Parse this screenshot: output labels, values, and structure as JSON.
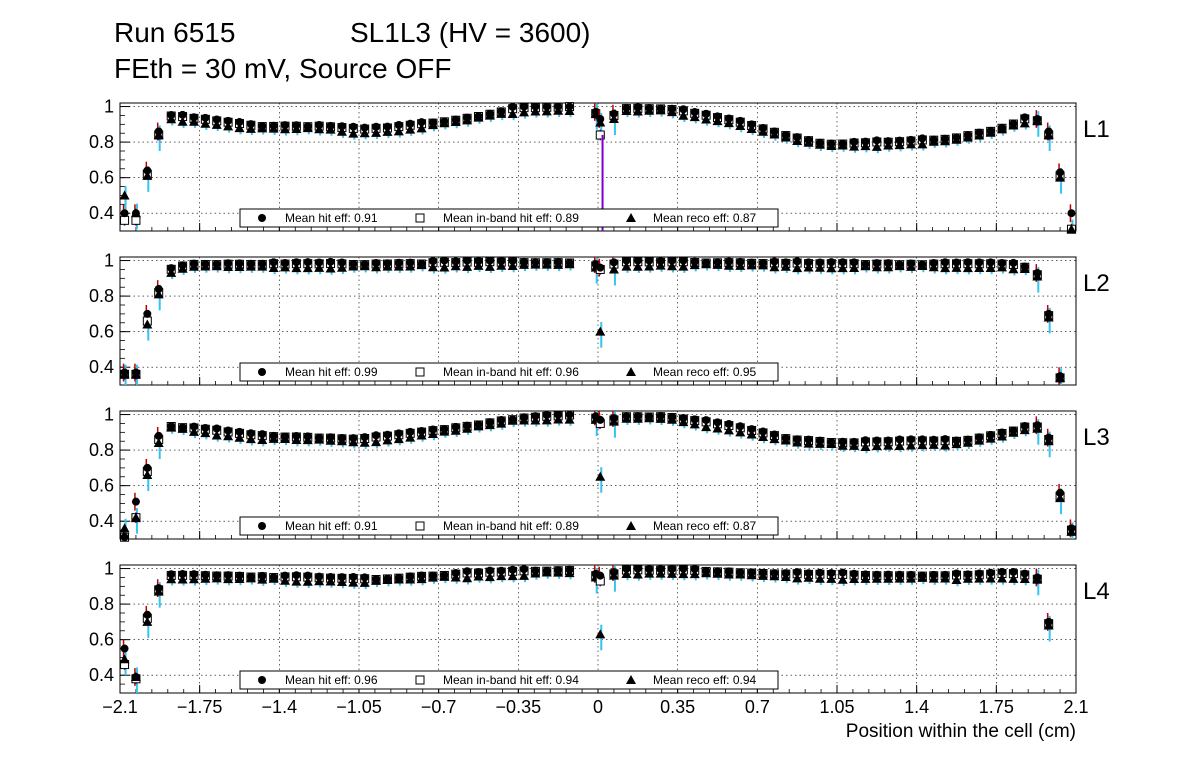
{
  "header": {
    "run": "Run 6515",
    "superlayer": "SL1L3 (HV = 3600)",
    "settings": "FEth = 30 mV, Source OFF"
  },
  "colors": {
    "frame": "#000000",
    "grid": "#000000",
    "hit_error": "#c00000",
    "inband_error": "#7b00c8",
    "reco_error": "#33c4f0",
    "marker": "#000000"
  },
  "chart_data": {
    "type": "scatter",
    "xlabel": "Position within the cell (cm)",
    "xlim": [
      -2.1,
      2.1
    ],
    "ylim": [
      0.3,
      1.02
    ],
    "x_ticks": [
      -2.1,
      -1.75,
      -1.4,
      -1.05,
      -0.7,
      -0.35,
      0,
      0.35,
      0.7,
      1.05,
      1.4,
      1.75,
      2.1
    ],
    "x_tick_labels": [
      "−2.1",
      "−1.75",
      "−1.4",
      "−1.05",
      "−0.7",
      "−0.35",
      "0",
      "0.35",
      "0.7",
      "1.05",
      "1.4",
      "1.75",
      "2.1"
    ],
    "y_ticks": [
      0.4,
      0.6,
      0.8,
      1
    ],
    "y_tick_labels": [
      "0.4",
      "0.6",
      "0.8",
      "1"
    ],
    "series_names": [
      "Mean hit  eff",
      "Mean in-band hit eff",
      "Mean reco eff"
    ],
    "panels": [
      {
        "label": "L1",
        "legend": {
          "hit": "Mean hit  eff: 0.91",
          "inband": "Mean in-band hit eff: 0.89",
          "reco": "Mean reco eff: 0.87"
        },
        "edge_points": {
          "x": [
            -2.08,
            -2.03,
            -1.98,
            -1.93,
            1.93,
            1.98,
            2.03,
            2.08
          ],
          "hit": [
            0.4,
            0.4,
            0.64,
            0.86,
            0.93,
            0.86,
            0.63,
            0.4
          ],
          "inband": [
            0.36,
            0.36,
            0.62,
            0.84,
            0.92,
            0.84,
            0.61,
            0.31
          ],
          "reco": [
            0.5,
            0.4,
            0.61,
            0.84,
            0.92,
            0.84,
            0.6,
            0.31
          ]
        },
        "center_points": {
          "x": [
            -0.01,
            0.01,
            0.07
          ],
          "hit": [
            0.97,
            0.93,
            0.96
          ],
          "inband": [
            0.96,
            0.84,
            0.95
          ],
          "reco": [
            0.96,
            0.91,
            0.93
          ]
        },
        "anchors": {
          "x": [
            -1.9,
            -1.75,
            -1.5,
            -1.2,
            -1.05,
            -0.9,
            -0.6,
            -0.35,
            -0.05,
            0.05,
            0.3,
            0.6,
            0.85,
            1.0,
            1.3,
            1.55,
            1.75,
            1.9
          ],
          "y": [
            0.95,
            0.93,
            0.89,
            0.89,
            0.87,
            0.88,
            0.93,
            0.99,
            1.0,
            0.99,
            0.99,
            0.92,
            0.83,
            0.79,
            0.8,
            0.82,
            0.87,
            0.94
          ]
        }
      },
      {
        "label": "L2",
        "legend": {
          "hit": "Mean hit  eff: 0.99",
          "inband": "Mean in-band hit eff: 0.96",
          "reco": "Mean reco eff: 0.95"
        },
        "edge_points": {
          "x": [
            -2.08,
            -2.03,
            -1.98,
            -1.93,
            1.93,
            1.98,
            2.03,
            2.08
          ],
          "hit": [
            0.37,
            0.37,
            0.7,
            0.84,
            0.93,
            0.7,
            0.35,
            null
          ],
          "inband": [
            0.36,
            0.36,
            0.66,
            0.82,
            0.92,
            0.69,
            0.34,
            null
          ],
          "reco": [
            0.36,
            0.36,
            0.64,
            0.81,
            0.91,
            0.68,
            0.34,
            null
          ]
        },
        "center_points": {
          "x": [
            -0.01,
            0.01,
            0.07
          ],
          "hit": [
            0.98,
            0.96,
            0.99
          ],
          "inband": [
            0.97,
            0.95,
            0.98
          ],
          "reco": [
            0.96,
            0.6,
            0.95
          ]
        },
        "anchors": {
          "x": [
            -1.9,
            -1.8,
            -1.5,
            -1.0,
            -0.5,
            -0.05,
            0.05,
            0.5,
            1.0,
            1.5,
            1.8,
            1.9
          ],
          "y": [
            0.94,
            0.98,
            0.98,
            0.98,
            0.99,
            0.99,
            0.99,
            0.99,
            0.98,
            0.98,
            0.98,
            0.96
          ]
        }
      },
      {
        "label": "L3",
        "legend": {
          "hit": "Mean hit  eff: 0.91",
          "inband": "Mean in-band hit eff: 0.89",
          "reco": "Mean reco eff: 0.87"
        },
        "edge_points": {
          "x": [
            -2.08,
            -2.03,
            -1.98,
            -1.93,
            1.93,
            1.98,
            2.03,
            2.08
          ],
          "hit": [
            0.31,
            0.51,
            0.7,
            0.88,
            0.94,
            0.87,
            0.56,
            0.36
          ],
          "inband": [
            0.31,
            0.42,
            0.68,
            0.86,
            0.93,
            0.86,
            0.54,
            0.35
          ],
          "reco": [
            0.36,
            0.42,
            0.66,
            0.84,
            0.92,
            0.85,
            0.53,
            0.34
          ]
        },
        "center_points": {
          "x": [
            -0.01,
            0.01,
            0.07
          ],
          "hit": [
            0.99,
            0.97,
            0.98
          ],
          "inband": [
            0.98,
            0.95,
            0.97
          ],
          "reco": [
            0.97,
            0.65,
            0.96
          ]
        },
        "anchors": {
          "x": [
            -1.9,
            -1.75,
            -1.5,
            -1.2,
            -1.05,
            -0.9,
            -0.6,
            -0.35,
            -0.05,
            0.05,
            0.3,
            0.6,
            0.85,
            1.1,
            1.4,
            1.6,
            1.8,
            1.9
          ],
          "y": [
            0.94,
            0.92,
            0.88,
            0.87,
            0.86,
            0.88,
            0.93,
            0.98,
            1.0,
            0.99,
            0.99,
            0.93,
            0.86,
            0.84,
            0.85,
            0.85,
            0.9,
            0.94
          ]
        }
      },
      {
        "label": "L4",
        "legend": {
          "hit": "Mean hit  eff: 0.96",
          "inband": "Mean in-band hit eff: 0.94",
          "reco": "Mean reco eff: 0.94"
        },
        "edge_points": {
          "x": [
            -2.08,
            -2.03,
            -1.98,
            -1.93,
            1.93,
            1.98,
            2.03,
            2.08
          ],
          "hit": [
            0.55,
            0.39,
            0.74,
            0.89,
            0.95,
            0.7,
            null,
            null
          ],
          "inband": [
            0.46,
            0.38,
            0.72,
            0.88,
            0.94,
            0.69,
            null,
            null
          ],
          "reco": [
            0.49,
            0.39,
            0.7,
            0.87,
            0.94,
            0.68,
            null,
            null
          ]
        },
        "center_points": {
          "x": [
            -0.01,
            0.01,
            0.07
          ],
          "hit": [
            0.97,
            0.96,
            0.98
          ],
          "inband": [
            0.96,
            0.93,
            0.97
          ],
          "reco": [
            0.95,
            0.63,
            0.96
          ]
        },
        "anchors": {
          "x": [
            -1.9,
            -1.7,
            -1.3,
            -1.0,
            -0.6,
            -0.2,
            -0.05,
            0.05,
            0.4,
            0.8,
            1.2,
            1.6,
            1.8,
            1.9
          ],
          "y": [
            0.96,
            0.96,
            0.95,
            0.94,
            0.97,
            0.99,
            0.99,
            0.99,
            0.99,
            0.97,
            0.96,
            0.96,
            0.97,
            0.96
          ]
        }
      }
    ]
  }
}
